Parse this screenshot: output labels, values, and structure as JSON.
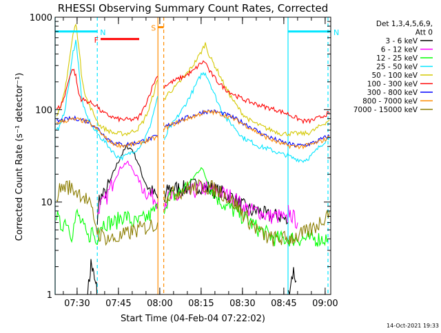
{
  "chart_data": {
    "type": "line",
    "title": "RHESSI Observing Summary Count Rates, Corrected",
    "xlabel": "Start Time (04-Feb-04 07:22:02)",
    "ylabel": "Corrected Count Rate (s⁻¹ detector⁻¹)",
    "x_unit": "minutes",
    "xlim": [
      0,
      100
    ],
    "ylim": [
      1,
      1000
    ],
    "yscale": "log",
    "grid": false,
    "legend_position": "top-right",
    "legend_header": [
      "Det 1,3,4,5,6,9,",
      "Att 0"
    ],
    "x_ticks": [
      {
        "value": 7.97,
        "label": "07:30"
      },
      {
        "value": 22.97,
        "label": "07:45"
      },
      {
        "value": 37.97,
        "label": "08:00"
      },
      {
        "value": 52.97,
        "label": "08:15"
      },
      {
        "value": 67.97,
        "label": "08:30"
      },
      {
        "value": 82.97,
        "label": "08:45"
      },
      {
        "value": 97.97,
        "label": "09:00"
      }
    ],
    "y_ticks": [
      {
        "value": 1,
        "label": "1"
      },
      {
        "value": 10,
        "label": "10"
      },
      {
        "value": 100,
        "label": "100"
      },
      {
        "value": 1000,
        "label": "1000"
      }
    ],
    "annotations": [
      {
        "label": "N",
        "color": "#00e5ff",
        "x_start": 0,
        "x_end": 15.3,
        "y": 700
      },
      {
        "label": "N",
        "color": "#00e5ff",
        "x_start": 84.5,
        "x_end": 100,
        "y": 700
      },
      {
        "label": "F",
        "color": "#ff0000",
        "x_start": 16.5,
        "x_end": 30.5,
        "y": 580
      },
      {
        "label": "S",
        "color": "#ff8c00",
        "x_start": 37.3,
        "x_end": 39.4,
        "y": 780
      }
    ],
    "vertical_lines": [
      {
        "x": 0,
        "color": "#00e5ff",
        "style": "solid"
      },
      {
        "x": 15.3,
        "color": "#00e5ff",
        "style": "dashed"
      },
      {
        "x": 37.3,
        "color": "#ff8c00",
        "style": "solid"
      },
      {
        "x": 39.4,
        "color": "#ff8c00",
        "style": "dashed"
      },
      {
        "x": 84.5,
        "color": "#00e5ff",
        "style": "solid"
      },
      {
        "x": 99.0,
        "color": "#00e5ff",
        "style": "dashed"
      }
    ],
    "series": [
      {
        "name": "3 - 6 keV",
        "color": "#000000",
        "segments": [
          {
            "x": [
              11.8,
              12.5,
              13.0,
              13.5,
              14.0,
              14.5,
              15.0,
              15.3
            ],
            "y": [
              1.0,
              1.5,
              2.2,
              1.9,
              1.6,
              1.3,
              1.2,
              1.0
            ]
          },
          {
            "x": [
              15.3,
              16,
              18,
              20,
              22,
              24,
              26,
              28,
              30,
              32,
              34,
              36,
              37.2
            ],
            "y": [
              6,
              11,
              12,
              17,
              24,
              32,
              40,
              37,
              27,
              18,
              14,
              12,
              11
            ]
          },
          {
            "x": [
              39.6,
              41,
              44,
              47,
              50,
              53,
              56,
              59,
              62,
              65,
              68,
              71,
              74,
              77,
              80,
              82,
              84.4
            ],
            "y": [
              10,
              14,
              14,
              14,
              15,
              15,
              14,
              13,
              12,
              11,
              9,
              8,
              8,
              7,
              7,
              7,
              6
            ]
          },
          {
            "x": [
              84.6,
              85.5,
              86.5,
              87.5
            ],
            "y": [
              1.0,
              1.4,
              1.8,
              1.4
            ]
          }
        ]
      },
      {
        "name": "6 - 12 keV",
        "color": "#ff00ff",
        "segments": [
          {
            "x": [
              15.3,
              16,
              18,
              20,
              22,
              24,
              26,
              28,
              30,
              32,
              34,
              36,
              37.2
            ],
            "y": [
              7,
              9,
              10,
              14,
              19,
              24,
              27,
              23,
              18,
              14,
              12,
              11,
              10
            ]
          },
          {
            "x": [
              39.6,
              41,
              44,
              47,
              50,
              53,
              56,
              59,
              62,
              65,
              68,
              71,
              74,
              77,
              80,
              82,
              84.4
            ],
            "y": [
              10,
              11,
              11,
              12,
              13,
              14,
              14,
              13,
              12,
              11,
              9,
              8,
              8,
              7,
              7,
              7,
              6
            ]
          },
          {
            "x": [
              84.6,
              86,
              88
            ],
            "y": [
              8,
              7,
              6
            ]
          }
        ]
      },
      {
        "name": "12 - 25 keV",
        "color": "#00ff00",
        "segments": [
          {
            "x": [
              0.5,
              2,
              4,
              6,
              8,
              10,
              12,
              13.5,
              15,
              16,
              18,
              20,
              22,
              24,
              26,
              28,
              30,
              32,
              34,
              36,
              37.2
            ],
            "y": [
              7,
              5.5,
              6.5,
              4.5,
              7.5,
              5.5,
              4,
              5,
              3.5,
              5.5,
              6,
              6,
              6,
              7,
              7,
              6,
              6,
              6.5,
              7,
              8,
              8.5
            ]
          },
          {
            "x": [
              39.6,
              41,
              44,
              47,
              50,
              53,
              56,
              59,
              62,
              65,
              68,
              71,
              74,
              77,
              80,
              82,
              84.4
            ],
            "y": [
              9,
              11,
              12,
              14,
              18,
              24,
              15,
              11,
              9,
              8,
              7,
              6,
              5,
              4.5,
              4,
              4,
              4
            ]
          },
          {
            "x": [
              84.6,
              88,
              92,
              96,
              99
            ],
            "y": [
              4,
              4,
              4,
              4,
              4
            ]
          }
        ]
      },
      {
        "name": "25 - 50 keV",
        "color": "#00e5ff",
        "segments": [
          {
            "x": [
              0.5,
              2,
              3.5,
              5,
              6.5,
              7.5,
              8.5,
              9.5,
              11,
              12.5,
              14,
              15.3,
              16,
              18,
              20,
              22,
              24,
              26,
              28,
              30,
              32,
              34,
              36,
              37.2
            ],
            "y": [
              60,
              68,
              100,
              190,
              420,
              560,
              310,
              140,
              90,
              75,
              62,
              55,
              52,
              45,
              38,
              32,
              30,
              32,
              35,
              38,
              45,
              60,
              100,
              140
            ]
          },
          {
            "x": [
              39.6,
              41,
              44,
              47,
              50,
              53,
              54.5,
              56,
              59,
              62,
              65,
              68,
              71,
              74,
              77,
              80,
              82,
              84.4,
              86,
              88,
              90,
              92,
              94,
              96,
              98,
              99.5
            ],
            "y": [
              45,
              60,
              80,
              110,
              160,
              240,
              250,
              200,
              120,
              80,
              65,
              50,
              45,
              40,
              38,
              35,
              33,
              32,
              30,
              29,
              28,
              30,
              34,
              40,
              46,
              50
            ]
          }
        ]
      },
      {
        "name": "50 - 100 keV",
        "color": "#d4c800",
        "segments": [
          {
            "x": [
              0.5,
              2,
              3.5,
              5,
              6.5,
              7.5,
              8.5,
              9.5,
              11,
              12.5,
              14,
              15.3,
              16,
              18,
              20,
              22,
              24,
              26,
              28,
              30,
              32,
              34,
              36,
              37.2
            ],
            "y": [
              90,
              100,
              160,
              320,
              650,
              850,
              520,
              250,
              140,
              110,
              90,
              75,
              68,
              62,
              58,
              55,
              55,
              55,
              58,
              62,
              75,
              100,
              160,
              210
            ]
          },
          {
            "x": [
              39.6,
              41,
              44,
              47,
              50,
              53,
              54.5,
              56,
              59,
              62,
              65,
              68,
              71,
              74,
              77,
              80,
              82,
              84.4,
              86,
              88,
              90,
              92,
              94,
              96,
              98,
              99.5
            ],
            "y": [
              130,
              150,
              180,
              230,
              300,
              420,
              520,
              380,
              260,
              170,
              120,
              90,
              75,
              68,
              62,
              58,
              55,
              55,
              55,
              55,
              55,
              56,
              60,
              66,
              72,
              78
            ]
          }
        ]
      },
      {
        "name": "100 - 300 keV",
        "color": "#ff0000",
        "segments": [
          {
            "x": [
              0.5,
              2,
              3.5,
              5,
              6.5,
              7.5,
              8.5,
              9.5,
              11,
              12.5,
              14,
              15.3,
              16,
              18,
              20,
              22,
              24,
              26,
              28,
              30,
              32,
              34,
              36,
              37.2
            ],
            "y": [
              100,
              110,
              140,
              220,
              280,
              230,
              150,
              130,
              125,
              120,
              115,
              110,
              100,
              90,
              85,
              80,
              78,
              78,
              78,
              80,
              100,
              140,
              200,
              230
            ]
          },
          {
            "x": [
              39.6,
              41,
              44,
              47,
              50,
              53,
              54.5,
              56,
              59,
              62,
              65,
              68,
              71,
              74,
              77,
              80,
              82,
              84.4,
              86,
              88,
              90,
              92,
              94,
              96,
              98,
              99.5
            ],
            "y": [
              180,
              190,
              210,
              230,
              260,
              320,
              330,
              260,
              200,
              165,
              145,
              130,
              120,
              112,
              105,
              100,
              95,
              90,
              85,
              80,
              75,
              75,
              78,
              82,
              88,
              92
            ]
          }
        ]
      },
      {
        "name": "300 - 800 keV",
        "color": "#0000ff",
        "segments": [
          {
            "x": [
              0.5,
              2,
              4,
              6,
              8,
              10,
              12,
              14,
              16,
              18,
              20,
              22,
              24,
              26,
              28,
              30,
              32,
              34,
              36,
              37.2
            ],
            "y": [
              74,
              76,
              78,
              80,
              80,
              78,
              74,
              68,
              60,
              52,
              46,
              43,
              42,
              42,
              43,
              44,
              46,
              48,
              50,
              52
            ]
          },
          {
            "x": [
              39.6,
              42,
              45,
              48,
              51,
              54,
              57,
              60,
              63,
              66,
              69,
              72,
              75,
              78,
              81,
              84,
              87,
              90,
              93,
              96,
              99.5
            ],
            "y": [
              64,
              70,
              76,
              82,
              88,
              95,
              96,
              92,
              86,
              78,
              70,
              62,
              55,
              50,
              46,
              43,
              41,
              41,
              43,
              47,
              52
            ]
          }
        ]
      },
      {
        "name": "800 - 7000 keV",
        "color": "#ff8c00",
        "segments": [
          {
            "x": [
              0.5,
              2,
              4,
              6,
              8,
              10,
              12,
              14,
              16,
              18,
              20,
              22,
              24,
              26,
              28,
              30,
              32,
              34,
              36,
              37.2
            ],
            "y": [
              72,
              74,
              76,
              78,
              78,
              76,
              72,
              66,
              58,
              50,
              45,
              42,
              41,
              41,
              42,
              43,
              45,
              47,
              49,
              50
            ]
          },
          {
            "x": [
              39.6,
              42,
              45,
              48,
              51,
              54,
              57,
              60,
              63,
              66,
              69,
              72,
              75,
              78,
              81,
              84,
              87,
              90,
              93,
              96,
              99.5
            ],
            "y": [
              62,
              68,
              74,
              80,
              86,
              93,
              94,
              90,
              84,
              76,
              68,
              60,
              53,
              48,
              44,
              41,
              40,
              40,
              42,
              45,
              50
            ]
          }
        ]
      },
      {
        "name": "7000 - 15000 keV",
        "color": "#8b7d00",
        "segments": [
          {
            "x": [
              0.5,
              2,
              4,
              6,
              8,
              10,
              12,
              14,
              15.3,
              16,
              18,
              20,
              22,
              24,
              26,
              28,
              30,
              32,
              34,
              36,
              37.2
            ],
            "y": [
              12,
              14,
              15,
              14,
              13,
              12,
              10,
              7,
              5,
              4.5,
              4.2,
              4.0,
              4.0,
              4.2,
              4.5,
              4.8,
              5.0,
              5.2,
              5.5,
              5.7,
              6.0
            ]
          },
          {
            "x": [
              39.6,
              42,
              45,
              48,
              51,
              54,
              57,
              60,
              63,
              66,
              69,
              72,
              75,
              78,
              81,
              84,
              87,
              90,
              93,
              96,
              99.5
            ],
            "y": [
              12,
              12,
              13,
              14,
              14,
              15,
              14,
              13,
              11,
              9,
              7,
              5.5,
              4.5,
              4,
              4,
              4,
              4.2,
              4.5,
              5,
              6,
              8
            ]
          }
        ]
      }
    ],
    "timestamp": "14-Oct-2021 19:33"
  }
}
